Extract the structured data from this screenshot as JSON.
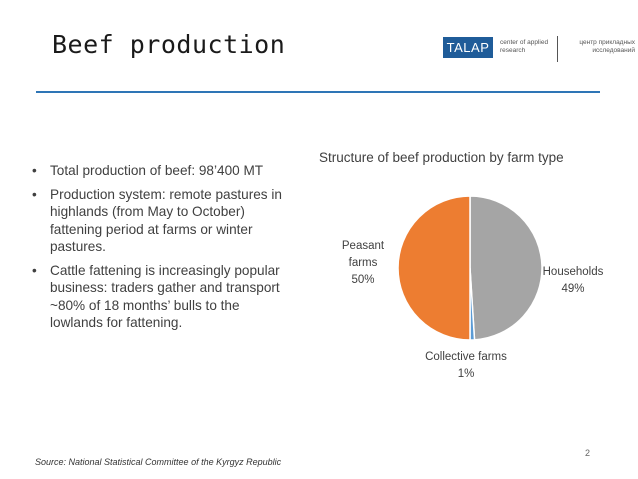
{
  "header": {
    "title": "Beef production",
    "logo_name": "TALAP",
    "logo_en": "center of applied research",
    "logo_ru": "центр прикладных исследований"
  },
  "bullets": [
    "Total production of beef: 98’400 MT",
    "Production system: remote pastures in highlands (from May to October) fattening period at farms or winter pastures.",
    "Cattle fattening is increasingly popular business: traders gather and transport ~80% of 18 months’ bulls to the lowlands for fattening."
  ],
  "chart": {
    "title": "Structure of beef production by farm type",
    "labels": {
      "peasant_name": "Peasant farms",
      "peasant_pct": "50%",
      "households_name": "Households",
      "households_pct": "49%",
      "collective_name": "Collective farms",
      "collective_pct": "1%"
    }
  },
  "chart_data": {
    "type": "pie",
    "title": "Structure of beef production by farm type",
    "categories": [
      "Households",
      "Collective farms",
      "Peasant farms"
    ],
    "values": [
      49,
      1,
      50
    ],
    "colors": [
      "#a5a5a5",
      "#5b9bd5",
      "#ed7d31"
    ],
    "unit": "%"
  },
  "footer": {
    "source": "Source: National Statistical Committee of the Kyrgyz Republic",
    "page_number": "2"
  }
}
